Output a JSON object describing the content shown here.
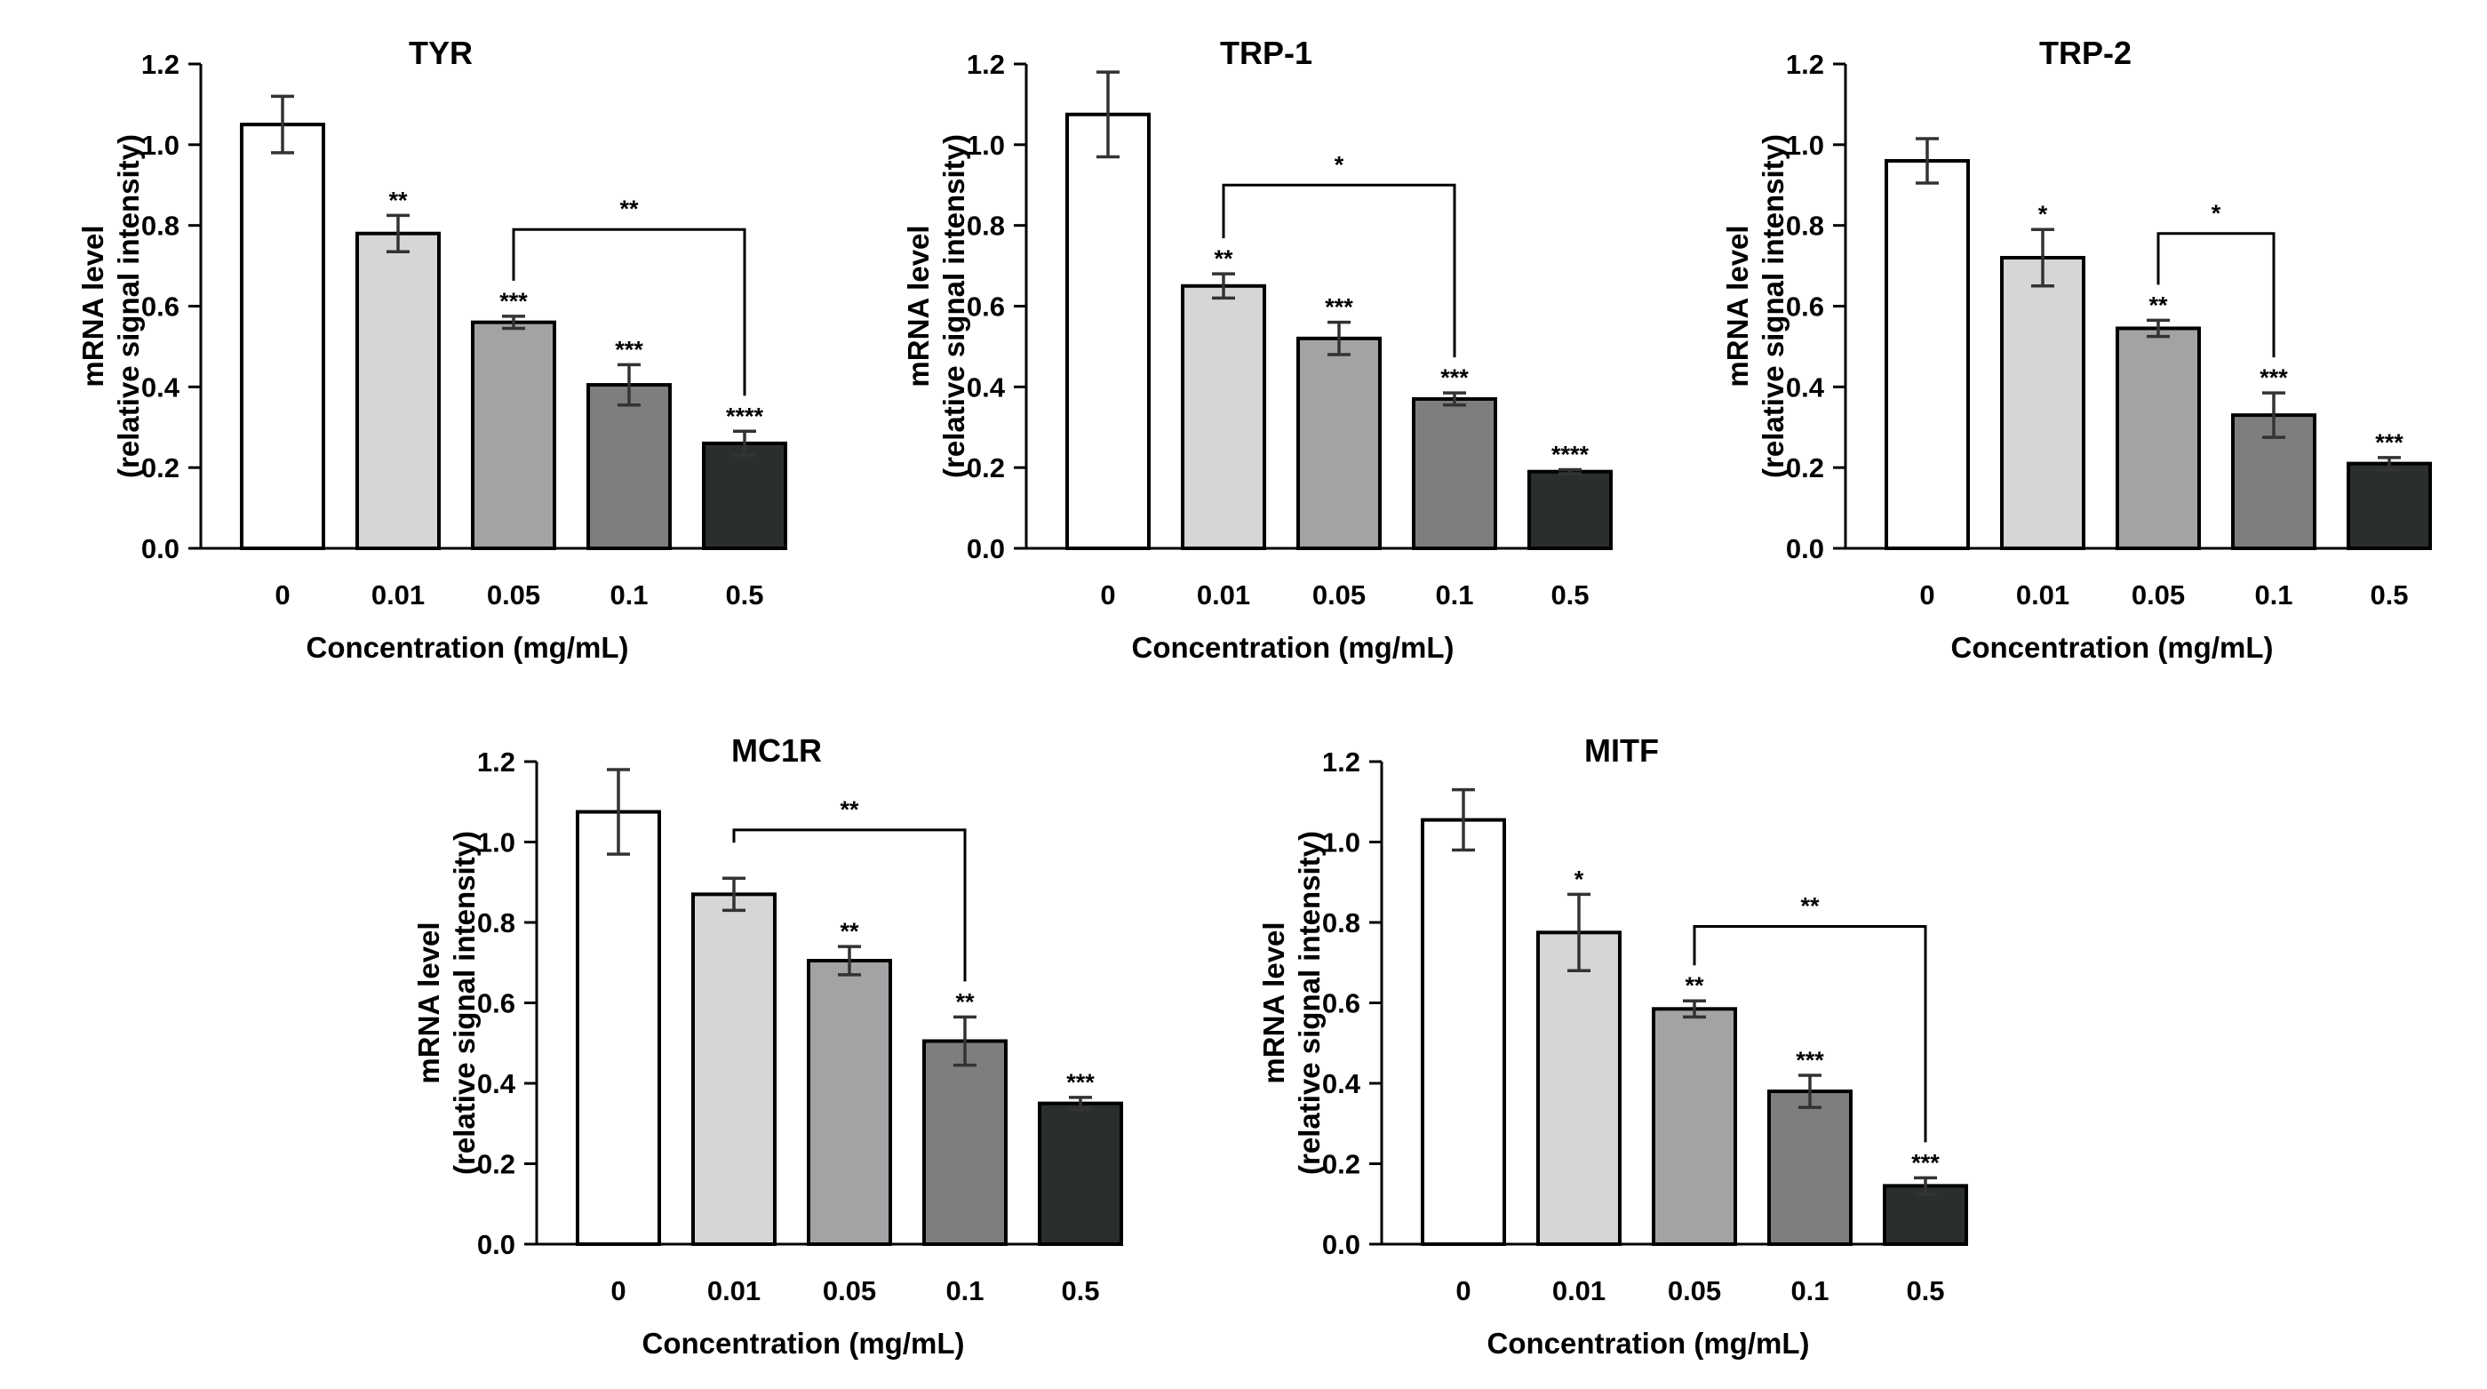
{
  "figure": {
    "colors": [
      "#ffffff",
      "#d6d6d6",
      "#a2a3a5",
      "#7e7e7e",
      "#2b2e2f"
    ],
    "ylabel": "mRNA level",
    "ylabel2": "(relative signal intensity)",
    "xlabel": "Concentration (mg/mL)"
  },
  "chart_data": [
    {
      "type": "bar",
      "title": "TYR",
      "categories": [
        "0",
        "0.01",
        "0.05",
        "0.1",
        "0.5"
      ],
      "values": [
        1.05,
        0.78,
        0.56,
        0.405,
        0.26
      ],
      "errors": [
        0.07,
        0.045,
        0.015,
        0.05,
        0.03
      ],
      "sig": [
        "",
        "**",
        "***",
        "***",
        "****"
      ],
      "bracket": {
        "from": 2,
        "to": 4,
        "y": 0.79,
        "label": "**"
      },
      "ylim": [
        0,
        1.2
      ],
      "yticks": [
        "0.0",
        "0.2",
        "0.4",
        "0.6",
        "0.8",
        "1.0",
        "1.2"
      ],
      "xlabel": "Concentration (mg/mL)",
      "ylabel": "mRNA level (relative signal intensity)"
    },
    {
      "type": "bar",
      "title": "TRP-1",
      "categories": [
        "0",
        "0.01",
        "0.05",
        "0.1",
        "0.5"
      ],
      "values": [
        1.075,
        0.65,
        0.52,
        0.37,
        0.19
      ],
      "errors": [
        0.105,
        0.03,
        0.04,
        0.015,
        0.005
      ],
      "sig": [
        "",
        "**",
        "***",
        "***",
        "****"
      ],
      "bracket": {
        "from": 1,
        "to": 3,
        "y": 0.9,
        "label": "*"
      },
      "ylim": [
        0,
        1.2
      ],
      "yticks": [
        "0.0",
        "0.2",
        "0.4",
        "0.6",
        "0.8",
        "1.0",
        "1.2"
      ],
      "xlabel": "Concentration (mg/mL)",
      "ylabel": "mRNA level (relative signal intensity)"
    },
    {
      "type": "bar",
      "title": "TRP-2",
      "categories": [
        "0",
        "0.01",
        "0.05",
        "0.1",
        "0.5"
      ],
      "values": [
        0.96,
        0.72,
        0.545,
        0.33,
        0.21
      ],
      "errors": [
        0.055,
        0.07,
        0.02,
        0.055,
        0.015
      ],
      "sig": [
        "",
        "*",
        "**",
        "***",
        "***"
      ],
      "bracket": {
        "from": 2,
        "to": 3,
        "y": 0.78,
        "label": "*"
      },
      "ylim": [
        0,
        1.2
      ],
      "yticks": [
        "0.0",
        "0.2",
        "0.4",
        "0.6",
        "0.8",
        "1.0",
        "1.2"
      ],
      "xlabel": "Concentration (mg/mL)",
      "ylabel": "mRNA level (relative signal intensity)"
    },
    {
      "type": "bar",
      "title": "MC1R",
      "categories": [
        "0",
        "0.01",
        "0.05",
        "0.1",
        "0.5"
      ],
      "values": [
        1.075,
        0.87,
        0.705,
        0.505,
        0.35
      ],
      "errors": [
        0.105,
        0.04,
        0.035,
        0.06,
        0.015
      ],
      "sig": [
        "",
        "",
        "**",
        "**",
        "***"
      ],
      "bracket": {
        "from": 1,
        "to": 3,
        "y": 1.03,
        "label": "**"
      },
      "ylim": [
        0,
        1.2
      ],
      "yticks": [
        "0.0",
        "0.2",
        "0.4",
        "0.6",
        "0.8",
        "1.0",
        "1.2"
      ],
      "xlabel": "Concentration (mg/mL)",
      "ylabel": "mRNA level (relative signal intensity)"
    },
    {
      "type": "bar",
      "title": "MITF",
      "categories": [
        "0",
        "0.01",
        "0.05",
        "0.1",
        "0.5"
      ],
      "values": [
        1.055,
        0.775,
        0.585,
        0.38,
        0.145
      ],
      "errors": [
        0.075,
        0.095,
        0.02,
        0.04,
        0.02
      ],
      "sig": [
        "",
        "*",
        "**",
        "***",
        "***"
      ],
      "bracket": {
        "from": 2,
        "to": 4,
        "y": 0.79,
        "label": "**"
      },
      "ylim": [
        0,
        1.2
      ],
      "yticks": [
        "0.0",
        "0.2",
        "0.4",
        "0.6",
        "0.8",
        "1.0",
        "1.2"
      ],
      "xlabel": "Concentration (mg/mL)",
      "ylabel": "mRNA level (relative signal intensity)"
    }
  ]
}
